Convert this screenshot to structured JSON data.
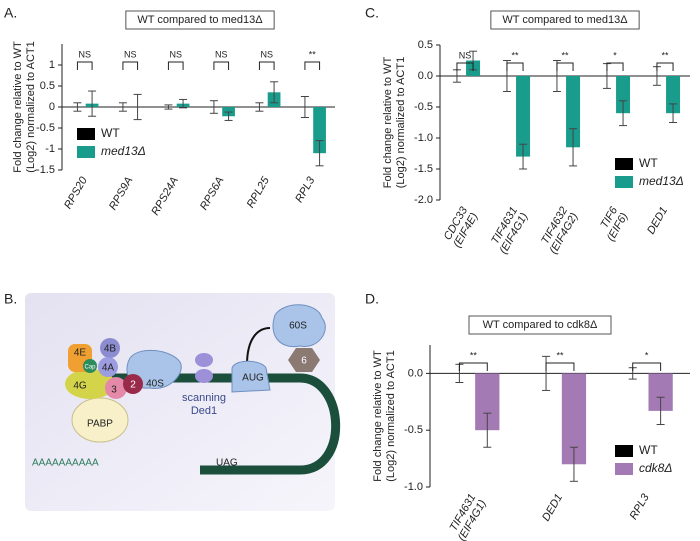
{
  "chart_data": [
    {
      "type": "bar",
      "panel": "A.",
      "title": "WT compared to med13Δ",
      "ylabel": [
        "Fold change relative to WT",
        "(Log2) normalized to ACT1"
      ],
      "categories": [
        [
          "RPS20"
        ],
        [
          "RPS9A"
        ],
        [
          "RPS24A"
        ],
        [
          "RPS6A"
        ],
        [
          "RPL25"
        ],
        [
          "RPL3"
        ]
      ],
      "series": [
        {
          "name": "WT",
          "color": "#000000",
          "values": [
            0,
            0,
            0,
            0,
            0,
            0
          ],
          "errors": [
            0.1,
            0.1,
            0.05,
            0.15,
            0.1,
            0.25
          ]
        },
        {
          "name": "med13Δ",
          "color": "#1a9c8c",
          "values": [
            0.08,
            0,
            0.08,
            -0.22,
            0.35,
            -1.1
          ],
          "errors": [
            0.3,
            0.3,
            0.1,
            0.1,
            0.25,
            0.3
          ]
        }
      ],
      "significance": [
        "NS",
        "NS",
        "NS",
        "NS",
        "NS",
        "**"
      ],
      "ylim": [
        -1.5,
        1.5
      ],
      "yticks": [
        -1.5,
        -1,
        -0.5,
        0,
        0.5,
        1
      ],
      "legend": "lower-left"
    },
    {
      "type": "bar",
      "panel": "C.",
      "title": "WT compared to med13Δ",
      "ylabel": [
        "Fold change relative to WT",
        "(Log2) normalized to ACT1"
      ],
      "categories": [
        [
          "CDC33",
          "(EIF4E)"
        ],
        [
          "TIF4631",
          "(EIF4G1)"
        ],
        [
          "TIF4632",
          "(EIF4G2)"
        ],
        [
          "TIF6",
          "(EIF6)"
        ],
        [
          "DED1"
        ]
      ],
      "series": [
        {
          "name": "WT",
          "color": "#000000",
          "values": [
            0,
            0,
            0,
            0,
            0
          ],
          "errors": [
            0.1,
            0.25,
            0.25,
            0.2,
            0.15
          ]
        },
        {
          "name": "med13Δ",
          "color": "#1a9c8c",
          "values": [
            0.25,
            -1.3,
            -1.15,
            -0.6,
            -0.6
          ],
          "errors": [
            0.15,
            0.2,
            0.3,
            0.2,
            0.15
          ]
        }
      ],
      "significance": [
        "NS",
        "**",
        "**",
        "*",
        "**"
      ],
      "ylim": [
        -2,
        0.5
      ],
      "yticks": [
        {
          "value": -2,
          "label": "-2.0"
        },
        -1.5,
        {
          "value": -1,
          "label": "-1.0"
        },
        -0.5,
        {
          "value": 0,
          "label": "0.0"
        },
        0.5
      ],
      "legend": "lower-right"
    },
    {
      "type": "bar",
      "panel": "D.",
      "title": "WT compared to cdk8Δ",
      "ylabel": [
        "Fold change relative to WT",
        "(Log2) normalized to ACT1"
      ],
      "categories": [
        [
          "TIF4631",
          "(EIF4G1)"
        ],
        [
          "DED1"
        ],
        [
          "RPL3"
        ]
      ],
      "series": [
        {
          "name": "WT",
          "color": "#000000",
          "values": [
            0,
            0,
            0
          ],
          "errors": [
            0.08,
            0.15,
            0.05
          ]
        },
        {
          "name": "cdk8Δ",
          "color": "#a47ab4",
          "values": [
            -0.5,
            -0.8,
            -0.33
          ],
          "errors": [
            0.15,
            0.15,
            0.12
          ]
        }
      ],
      "significance": [
        "**",
        "**",
        "*"
      ],
      "ylim": [
        -1,
        0.25
      ],
      "yticks": [
        {
          "value": -1,
          "label": "-1.0"
        },
        -0.5,
        {
          "value": 0,
          "label": "0.0"
        }
      ],
      "legend": "lower-right"
    }
  ],
  "diagram": {
    "panel": "B.",
    "labels": {
      "s60": "60S",
      "six": "6",
      "aug": "AUG",
      "e4": "4E",
      "cap": "Cap",
      "b4": "4B",
      "a4": "4A",
      "s40": "40S",
      "g4": "4G",
      "three": "3",
      "two": "2",
      "scanning": "scanning",
      "ded1": "Ded1",
      "pabp": "PABP",
      "polya": "AAAAAAAAAA",
      "uag": "UAG"
    }
  }
}
